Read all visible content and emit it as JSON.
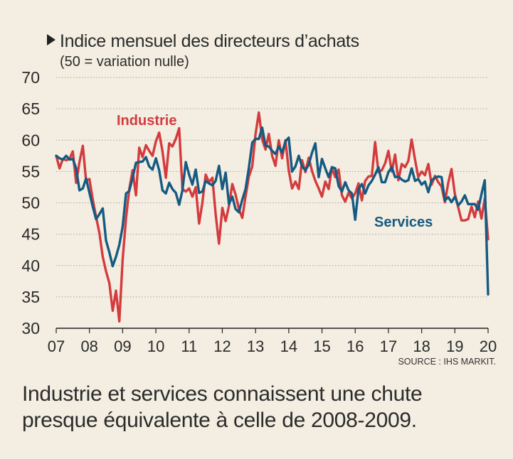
{
  "title": "Indice mensuel des directeurs d’achats",
  "subtitle": "(50 = variation nulle)",
  "source": "SOURCE : IHS MARKIT.",
  "caption": "Industrie et services connaissent une chute presque équivalente à celle de 2008-2009.",
  "chart_data": {
    "type": "line",
    "title": "Indice mensuel des directeurs d’achats",
    "subtitle": "(50 = variation nulle)",
    "xlim": [
      2007,
      2020
    ],
    "ylim": [
      30,
      70
    ],
    "x_ticks": [
      "07",
      "08",
      "09",
      "10",
      "11",
      "12",
      "13",
      "14",
      "15",
      "16",
      "17",
      "18",
      "19",
      "20"
    ],
    "y_ticks": [
      30,
      35,
      40,
      45,
      50,
      55,
      60,
      65,
      70
    ],
    "grid": true,
    "series": [
      {
        "name": "Industrie",
        "color": "#d43b3e",
        "x": [
          2007.0,
          2007.1,
          2007.2,
          2007.3,
          2007.4,
          2007.5,
          2007.6,
          2007.7,
          2007.8,
          2007.9,
          2008.0,
          2008.1,
          2008.2,
          2008.3,
          2008.4,
          2008.5,
          2008.6,
          2008.7,
          2008.8,
          2008.9,
          2009.0,
          2009.1,
          2009.2,
          2009.3,
          2009.4,
          2009.5,
          2009.6,
          2009.7,
          2009.8,
          2009.9,
          2010.0,
          2010.1,
          2010.2,
          2010.3,
          2010.4,
          2010.5,
          2010.6,
          2010.7,
          2010.8,
          2010.9,
          2011.0,
          2011.1,
          2011.2,
          2011.3,
          2011.4,
          2011.5,
          2011.6,
          2011.7,
          2011.8,
          2011.9,
          2012.0,
          2012.1,
          2012.2,
          2012.3,
          2012.4,
          2012.5,
          2012.6,
          2012.7,
          2012.8,
          2012.9,
          2013.0,
          2013.1,
          2013.2,
          2013.3,
          2013.4,
          2013.5,
          2013.6,
          2013.7,
          2013.8,
          2013.9,
          2014.0,
          2014.1,
          2014.2,
          2014.3,
          2014.4,
          2014.5,
          2014.6,
          2014.7,
          2014.8,
          2014.9,
          2015.0,
          2015.1,
          2015.2,
          2015.3,
          2015.4,
          2015.5,
          2015.6,
          2015.7,
          2015.8,
          2015.9,
          2016.0,
          2016.1,
          2016.2,
          2016.3,
          2016.4,
          2016.5,
          2016.6,
          2016.7,
          2016.8,
          2016.9,
          2017.0,
          2017.1,
          2017.2,
          2017.3,
          2017.4,
          2017.5,
          2017.6,
          2017.7,
          2017.8,
          2017.9,
          2018.0,
          2018.1,
          2018.2,
          2018.3,
          2018.4,
          2018.5,
          2018.6,
          2018.7,
          2018.8,
          2018.9,
          2019.0,
          2019.1,
          2019.2,
          2019.3,
          2019.4,
          2019.5,
          2019.6,
          2019.7,
          2019.8,
          2019.9,
          2020.0
        ],
        "values": [
          57.5,
          55.5,
          57.0,
          56.8,
          57.0,
          58.2,
          53.2,
          56.5,
          59.1,
          53.5,
          53.8,
          50.5,
          47.8,
          45.2,
          41.4,
          39.1,
          37.2,
          32.8,
          36.0,
          31.1,
          41.0,
          47.5,
          52.2,
          55.2,
          51.2,
          58.8,
          57.3,
          59.2,
          58.3,
          57.5,
          59.8,
          61.2,
          58.2,
          54.0,
          59.5,
          59.0,
          60.2,
          61.9,
          52.2,
          51.8,
          52.3,
          51.0,
          52.5,
          46.7,
          50.0,
          54.5,
          53.3,
          54.0,
          48.2,
          43.5,
          49.2,
          47.1,
          49.5,
          53.0,
          51.3,
          49.0,
          47.6,
          51.0,
          54.2,
          55.8,
          61.0,
          64.4,
          60.1,
          58.5,
          61.0,
          57.5,
          55.9,
          60.0,
          57.1,
          60.0,
          55.2,
          52.3,
          53.4,
          52.2,
          56.8,
          54.9,
          57.2,
          55.1,
          53.5,
          52.3,
          51.0,
          53.4,
          52.2,
          55.6,
          54.1,
          55.3,
          51.2,
          50.2,
          51.6,
          50.7,
          51.5,
          53.1,
          50.4,
          53.5,
          54.2,
          54.3,
          59.7,
          54.9,
          55.2,
          56.3,
          58.3,
          55.0,
          57.7,
          53.6,
          56.2,
          55.7,
          56.7,
          60.1,
          56.9,
          54.1,
          55.0,
          54.4,
          56.2,
          52.9,
          54.3,
          53.3,
          52.6,
          50.1,
          53.2,
          55.4,
          51.4,
          49.3,
          47.2,
          47.2,
          47.4,
          49.4,
          47.7,
          50.2,
          47.5,
          50.7,
          44.2
        ]
      },
      {
        "name": "Services",
        "color": "#155a82",
        "x": [
          2007.0,
          2007.1,
          2007.2,
          2007.3,
          2007.4,
          2007.5,
          2007.6,
          2007.7,
          2007.8,
          2007.9,
          2008.0,
          2008.1,
          2008.2,
          2008.3,
          2008.4,
          2008.5,
          2008.6,
          2008.7,
          2008.8,
          2008.9,
          2009.0,
          2009.1,
          2009.2,
          2009.3,
          2009.4,
          2009.5,
          2009.6,
          2009.7,
          2009.8,
          2009.9,
          2010.0,
          2010.1,
          2010.2,
          2010.3,
          2010.4,
          2010.5,
          2010.6,
          2010.7,
          2010.8,
          2010.9,
          2011.0,
          2011.1,
          2011.2,
          2011.3,
          2011.4,
          2011.5,
          2011.6,
          2011.7,
          2011.8,
          2011.9,
          2012.0,
          2012.1,
          2012.2,
          2012.3,
          2012.4,
          2012.5,
          2012.6,
          2012.7,
          2012.8,
          2012.9,
          2013.0,
          2013.1,
          2013.2,
          2013.3,
          2013.4,
          2013.5,
          2013.6,
          2013.7,
          2013.8,
          2013.9,
          2014.0,
          2014.1,
          2014.2,
          2014.3,
          2014.4,
          2014.5,
          2014.6,
          2014.7,
          2014.8,
          2014.9,
          2015.0,
          2015.1,
          2015.2,
          2015.3,
          2015.4,
          2015.5,
          2015.6,
          2015.7,
          2015.8,
          2015.9,
          2016.0,
          2016.1,
          2016.2,
          2016.3,
          2016.4,
          2016.5,
          2016.6,
          2016.7,
          2016.8,
          2016.9,
          2017.0,
          2017.1,
          2017.2,
          2017.3,
          2017.4,
          2017.5,
          2017.6,
          2017.7,
          2017.8,
          2017.9,
          2018.0,
          2018.1,
          2018.2,
          2018.3,
          2018.4,
          2018.5,
          2018.6,
          2018.7,
          2018.8,
          2018.9,
          2019.0,
          2019.1,
          2019.2,
          2019.3,
          2019.4,
          2019.5,
          2019.6,
          2019.7,
          2019.8,
          2019.9,
          2020.0
        ],
        "values": [
          57.5,
          57.1,
          56.9,
          57.5,
          56.9,
          57.0,
          55.5,
          52.0,
          52.3,
          53.9,
          51.6,
          49.4,
          47.4,
          48.2,
          49.1,
          44.0,
          42.1,
          39.9,
          41.4,
          43.3,
          46.2,
          51.5,
          51.9,
          54.0,
          56.4,
          56.5,
          56.6,
          57.3,
          55.8,
          55.3,
          57.1,
          55.2,
          52.0,
          51.5,
          53.2,
          52.2,
          51.6,
          49.7,
          52.0,
          56.5,
          54.5,
          52.9,
          55.3,
          51.6,
          51.8,
          53.5,
          53.1,
          52.8,
          53.5,
          55.9,
          52.2,
          54.8,
          49.8,
          51.0,
          49.0,
          48.5,
          50.5,
          52.2,
          55.6,
          59.6,
          60.2,
          60.2,
          62.0,
          59.1,
          59.0,
          58.3,
          57.8,
          59.0,
          58.0,
          59.8,
          60.4,
          55.0,
          55.8,
          57.5,
          55.8,
          55.2,
          56.1,
          58.0,
          59.5,
          54.1,
          57.0,
          55.5,
          54.1,
          55.7,
          55.5,
          52.7,
          51.8,
          53.3,
          52.0,
          51.5,
          47.3,
          52.2,
          53.0,
          51.5,
          52.8,
          53.5,
          54.5,
          55.7,
          53.3,
          53.3,
          54.9,
          55.7,
          54.1,
          54.2,
          53.7,
          53.4,
          53.6,
          55.5,
          53.5,
          53.8,
          52.9,
          53.4,
          51.7,
          53.6,
          54.0,
          54.2,
          54.1,
          50.4,
          50.9,
          50.1,
          51.0,
          49.6,
          50.2,
          51.2,
          49.8,
          49.8,
          49.8,
          48.9,
          51.4,
          53.6,
          35.4
        ]
      }
    ]
  }
}
